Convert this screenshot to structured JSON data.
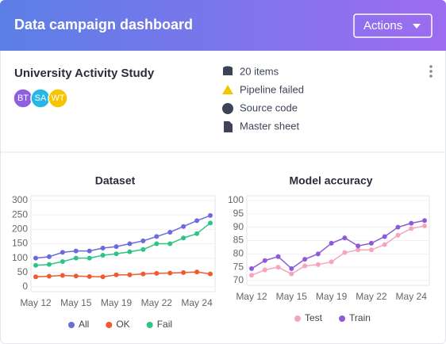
{
  "header": {
    "title": "Data campaign dashboard",
    "button": "Actions"
  },
  "project": {
    "title": "University Activity Study",
    "members": [
      "BT",
      "SA",
      "WT"
    ],
    "details": [
      "20 items",
      "Pipeline failed",
      "Source code",
      "Master sheet"
    ]
  },
  "chart_data": [
    {
      "type": "line",
      "title": "Dataset",
      "categories": [
        "May 12",
        null,
        null,
        "May 15",
        null,
        null,
        "May 19",
        null,
        null,
        "May 22",
        null,
        null,
        "May 24",
        null
      ],
      "series": [
        {
          "name": "All",
          "color": "#6b6bdd",
          "values": [
            100,
            105,
            120,
            125,
            125,
            135,
            140,
            150,
            160,
            175,
            190,
            210,
            230,
            248
          ]
        },
        {
          "name": "OK",
          "color": "#ef5a2e",
          "values": [
            35,
            37,
            40,
            38,
            36,
            35,
            42,
            42,
            45,
            47,
            48,
            50,
            52,
            45
          ]
        },
        {
          "name": "Fail",
          "color": "#2ec486",
          "values": [
            75,
            78,
            88,
            100,
            100,
            110,
            115,
            122,
            130,
            150,
            150,
            170,
            185,
            222
          ]
        }
      ],
      "ylim": [
        0,
        300
      ],
      "yticks": [
        0,
        50,
        100,
        150,
        200,
        250,
        300
      ],
      "grid": true,
      "legend": "bottom"
    },
    {
      "type": "line",
      "title": "Model accuracy",
      "categories": [
        "May 12",
        null,
        null,
        "May 15",
        null,
        null,
        "May 19",
        null,
        null,
        "May 22",
        null,
        null,
        "May 24",
        null
      ],
      "series": [
        {
          "name": "Test",
          "color": "#f4a6c0",
          "values": [
            72,
            74,
            75,
            72.5,
            75.5,
            76,
            77,
            80.5,
            81.5,
            81.5,
            83.5,
            87,
            89.5,
            90.5
          ]
        },
        {
          "name": "Train",
          "color": "#8f5ad8",
          "values": [
            74.5,
            77.5,
            79,
            74.5,
            78,
            80,
            84,
            86,
            83,
            84,
            86.5,
            90,
            91.5,
            92.5
          ]
        }
      ],
      "ylim": [
        70,
        100
      ],
      "yticks": [
        70,
        75,
        80,
        85,
        90,
        95,
        100
      ],
      "grid": true,
      "legend": "bottom"
    }
  ]
}
